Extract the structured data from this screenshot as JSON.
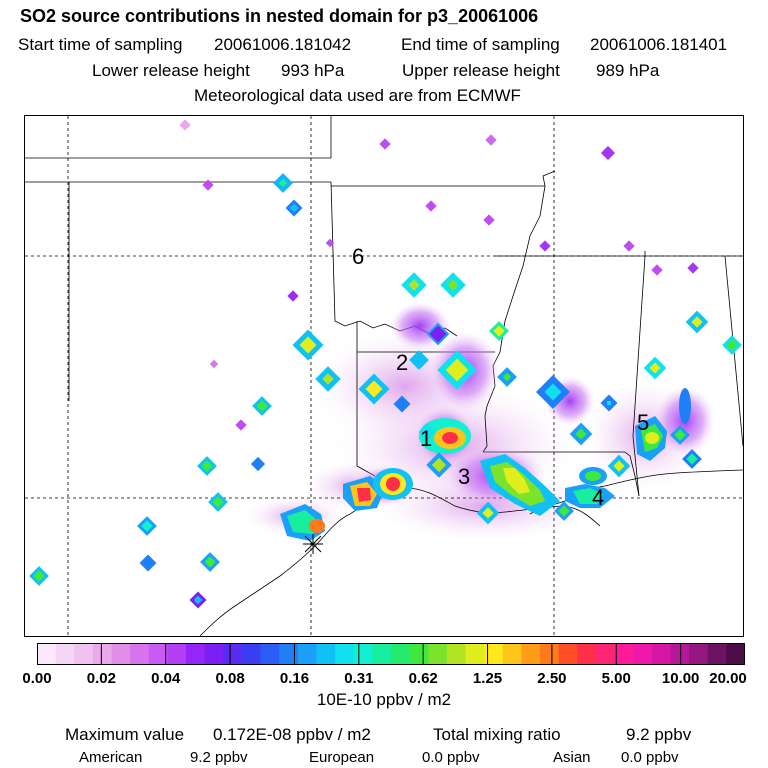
{
  "header": {
    "title": "SO2 source contributions in nested domain for p3_20061006",
    "start_label": "Start time of sampling",
    "start_value": "20061006.181042",
    "end_label": "End time of sampling",
    "end_value": "20061006.181401",
    "lower_label": "Lower release height",
    "lower_value": "993 hPa",
    "upper_label": "Upper release height",
    "upper_value": "989 hPa",
    "met_text": "Meteorological data used are from ECMWF"
  },
  "map": {
    "source_labels": [
      "1",
      "2",
      "3",
      "4",
      "5",
      "6"
    ]
  },
  "colorbar": {
    "tick_labels": [
      "0.00",
      "0.02",
      "0.04",
      "0.08",
      "0.16",
      "0.31",
      "0.62",
      "1.25",
      "2.50",
      "5.00",
      "10.00",
      "20.00"
    ],
    "units": "10E-10 ppbv / m2",
    "colors": [
      "#fbe9fb",
      "#f6d6f6",
      "#f0c2f0",
      "#eaa9ea",
      "#e08ee8",
      "#d773ee",
      "#c95af3",
      "#b33ff6",
      "#9426f8",
      "#7c1ff5",
      "#5b2bf2",
      "#3b3df0",
      "#2b5cf4",
      "#1f7ff7",
      "#1aa0f8",
      "#10c2f4",
      "#0fe1ee",
      "#11f1d2",
      "#18ef9e",
      "#23ea6b",
      "#3fe83c",
      "#7be32c",
      "#b3e424",
      "#e1ee1e",
      "#ffe81c",
      "#ffc41a",
      "#ff9c1a",
      "#ff7a1a",
      "#ff4f26",
      "#ff2f4a",
      "#ff2574",
      "#ff1a99",
      "#ee19aa",
      "#d617a6",
      "#b51799",
      "#94167f",
      "#6e1361",
      "#4c0d47"
    ]
  },
  "footer": {
    "max_label": "Maximum value",
    "max_value": "0.172E-08 ppbv / m2",
    "total_label": "Total mixing ratio",
    "total_value": "9.2 ppbv",
    "american_label": "American",
    "american_value": "9.2 ppbv",
    "european_label": "European",
    "european_value": "0.0 ppbv",
    "asian_label": "Asian",
    "asian_value": "0.0 ppbv"
  }
}
